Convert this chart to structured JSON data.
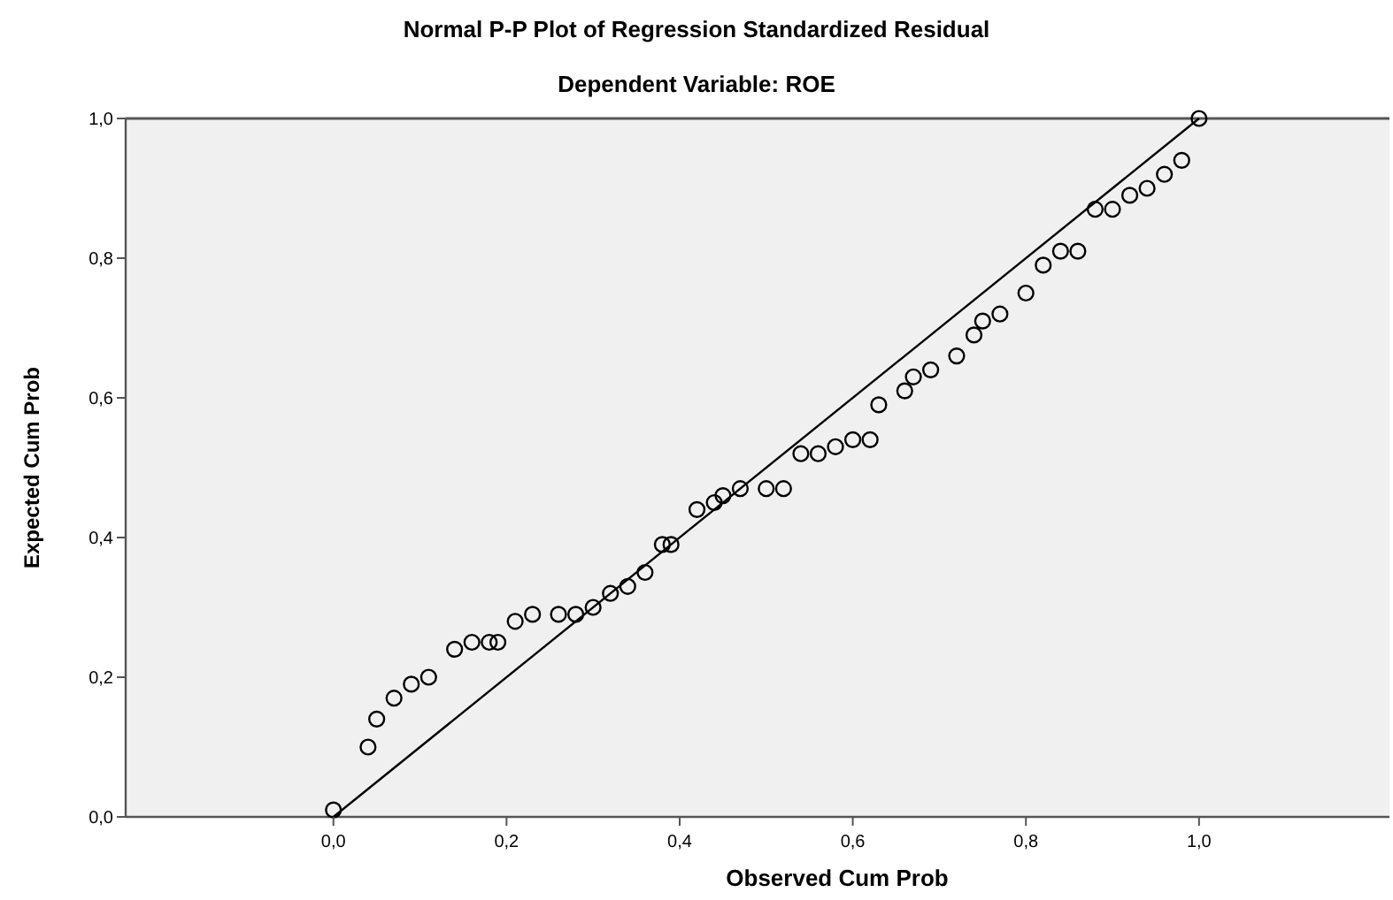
{
  "chart_data": {
    "type": "scatter",
    "title": "Normal P-P Plot of Regression Standardized Residual",
    "subtitle": "Dependent Variable: ROE",
    "xlabel": "Observed Cum Prob",
    "ylabel": "Expected Cum Prob",
    "xlim": [
      -0.24,
      1.22
    ],
    "ylim": [
      0,
      1
    ],
    "xticks": [
      {
        "value": 0,
        "label": "0,0"
      },
      {
        "value": 0.2,
        "label": "0,2"
      },
      {
        "value": 0.4,
        "label": "0,4"
      },
      {
        "value": 0.6,
        "label": "0,6"
      },
      {
        "value": 0.8,
        "label": "0,8"
      },
      {
        "value": 1,
        "label": "1,0"
      }
    ],
    "yticks": [
      {
        "value": 0,
        "label": "0,0"
      },
      {
        "value": 0.2,
        "label": "0,2"
      },
      {
        "value": 0.4,
        "label": "0,4"
      },
      {
        "value": 0.6,
        "label": "0,6"
      },
      {
        "value": 0.8,
        "label": "0,8"
      },
      {
        "value": 1,
        "label": "1,0"
      }
    ],
    "grid": false,
    "series": [
      {
        "type": "scatter",
        "marker": "circle",
        "color": "#000000",
        "x": [
          0.0,
          0.04,
          0.05,
          0.07,
          0.09,
          0.11,
          0.14,
          0.16,
          0.18,
          0.19,
          0.21,
          0.23,
          0.26,
          0.28,
          0.3,
          0.32,
          0.34,
          0.36,
          0.38,
          0.39,
          0.42,
          0.44,
          0.45,
          0.47,
          0.5,
          0.52,
          0.54,
          0.56,
          0.58,
          0.6,
          0.62,
          0.63,
          0.66,
          0.67,
          0.69,
          0.72,
          0.74,
          0.75,
          0.77,
          0.8,
          0.82,
          0.84,
          0.86,
          0.88,
          0.9,
          0.92,
          0.94,
          0.96,
          0.98,
          1.0
        ],
        "values": [
          0.01,
          0.1,
          0.14,
          0.17,
          0.19,
          0.2,
          0.24,
          0.25,
          0.25,
          0.25,
          0.28,
          0.29,
          0.29,
          0.29,
          0.3,
          0.32,
          0.33,
          0.35,
          0.39,
          0.39,
          0.44,
          0.45,
          0.46,
          0.47,
          0.47,
          0.47,
          0.52,
          0.52,
          0.53,
          0.54,
          0.54,
          0.59,
          0.61,
          0.63,
          0.64,
          0.66,
          0.69,
          0.71,
          0.72,
          0.75,
          0.79,
          0.81,
          0.81,
          0.87,
          0.87,
          0.89,
          0.9,
          0.92,
          0.94,
          1.0
        ]
      },
      {
        "type": "line",
        "marker": "none",
        "line_style": "solid",
        "color": "#000000",
        "x": [
          0,
          1
        ],
        "values": [
          0,
          1
        ]
      }
    ]
  }
}
